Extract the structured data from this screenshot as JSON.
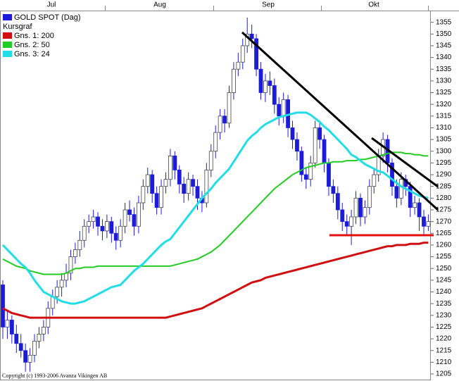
{
  "chart_data": {
    "type": "candlestick",
    "legend_heading": "Kursgraf",
    "footer": "Copyright (c) 1993-2006 Avanza Vikingen AB",
    "months": [
      "Jul",
      "Aug",
      "Sep",
      "Okt"
    ],
    "ylim": [
      1202,
      1360
    ],
    "yticks": [
      1205,
      1210,
      1215,
      1220,
      1225,
      1230,
      1235,
      1240,
      1245,
      1250,
      1255,
      1260,
      1265,
      1270,
      1275,
      1280,
      1285,
      1290,
      1295,
      1300,
      1305,
      1310,
      1315,
      1320,
      1325,
      1330,
      1335,
      1340,
      1345,
      1350,
      1355
    ],
    "series": [
      {
        "name": "GOLD SPOT (Dag)",
        "color": "#1c1cd8",
        "open": [
          1243,
          1225,
          1228,
          1222,
          1218,
          1215,
          1210,
          1213,
          1219,
          1222,
          1225,
          1233,
          1238,
          1242,
          1245,
          1248,
          1255,
          1258,
          1262,
          1268,
          1270,
          1272,
          1268,
          1266,
          1270,
          1265,
          1262,
          1268,
          1275,
          1273,
          1268,
          1278,
          1285,
          1290,
          1282,
          1276,
          1285,
          1288,
          1298,
          1292,
          1286,
          1282,
          1288,
          1285,
          1280,
          1278,
          1292,
          1300,
          1308,
          1315,
          1312,
          1325,
          1335,
          1338,
          1345,
          1350,
          1348,
          1335,
          1325,
          1330,
          1328,
          1320,
          1315,
          1322,
          1310,
          1305,
          1300,
          1290,
          1288,
          1295,
          1310,
          1305,
          1295,
          1285,
          1282,
          1275,
          1270,
          1268,
          1272,
          1280,
          1272,
          1276,
          1285,
          1290,
          1298,
          1305,
          1295,
          1285,
          1280,
          1288,
          1285,
          1276,
          1278,
          1272,
          1268
        ],
        "high": [
          1245,
          1232,
          1230,
          1226,
          1222,
          1218,
          1216,
          1222,
          1225,
          1228,
          1236,
          1241,
          1245,
          1248,
          1252,
          1258,
          1261,
          1266,
          1271,
          1273,
          1275,
          1274,
          1271,
          1273,
          1272,
          1268,
          1271,
          1278,
          1279,
          1276,
          1281,
          1288,
          1293,
          1292,
          1285,
          1288,
          1291,
          1301,
          1300,
          1294,
          1289,
          1291,
          1290,
          1288,
          1283,
          1295,
          1303,
          1311,
          1318,
          1318,
          1328,
          1338,
          1342,
          1348,
          1357,
          1354,
          1350,
          1338,
          1333,
          1334,
          1331,
          1323,
          1325,
          1324,
          1313,
          1308,
          1302,
          1293,
          1298,
          1313,
          1313,
          1307,
          1297,
          1288,
          1285,
          1278,
          1273,
          1275,
          1283,
          1282,
          1279,
          1288,
          1293,
          1301,
          1308,
          1307,
          1297,
          1288,
          1291,
          1290,
          1287,
          1281,
          1280,
          1275,
          1273
        ],
        "low": [
          1220,
          1220,
          1218,
          1214,
          1212,
          1206,
          1206,
          1210,
          1216,
          1219,
          1222,
          1230,
          1235,
          1238,
          1242,
          1245,
          1252,
          1255,
          1259,
          1265,
          1267,
          1264,
          1262,
          1263,
          1261,
          1258,
          1259,
          1265,
          1270,
          1264,
          1265,
          1275,
          1282,
          1278,
          1273,
          1273,
          1282,
          1285,
          1288,
          1282,
          1278,
          1279,
          1281,
          1275,
          1274,
          1276,
          1289,
          1297,
          1305,
          1308,
          1310,
          1322,
          1332,
          1335,
          1342,
          1344,
          1332,
          1322,
          1321,
          1324,
          1316,
          1311,
          1312,
          1306,
          1301,
          1296,
          1287,
          1284,
          1285,
          1293,
          1301,
          1291,
          1281,
          1278,
          1271,
          1266,
          1264,
          1260,
          1269,
          1268,
          1269,
          1273,
          1282,
          1287,
          1295,
          1291,
          1281,
          1276,
          1277,
          1281,
          1272,
          1273,
          1266,
          1264,
          1266
        ],
        "close": [
          1225,
          1228,
          1222,
          1218,
          1215,
          1210,
          1213,
          1219,
          1222,
          1225,
          1233,
          1238,
          1242,
          1245,
          1248,
          1255,
          1258,
          1262,
          1268,
          1270,
          1272,
          1268,
          1266,
          1270,
          1265,
          1262,
          1268,
          1275,
          1273,
          1268,
          1278,
          1285,
          1290,
          1282,
          1276,
          1285,
          1288,
          1298,
          1292,
          1286,
          1282,
          1288,
          1285,
          1280,
          1278,
          1292,
          1300,
          1308,
          1315,
          1312,
          1325,
          1335,
          1338,
          1345,
          1350,
          1348,
          1335,
          1325,
          1330,
          1328,
          1320,
          1315,
          1322,
          1310,
          1305,
          1300,
          1290,
          1288,
          1295,
          1310,
          1305,
          1295,
          1285,
          1282,
          1275,
          1270,
          1268,
          1272,
          1280,
          1272,
          1276,
          1285,
          1290,
          1298,
          1305,
          1295,
          1285,
          1280,
          1288,
          1285,
          1276,
          1278,
          1272,
          1268,
          1270
        ]
      },
      {
        "name": "Gns. 1: 200",
        "color": "#d01010",
        "width": 3,
        "values": [
          1233,
          1232,
          1231,
          1230.5,
          1230,
          1229.5,
          1229,
          1229,
          1229,
          1229,
          1229,
          1229,
          1229,
          1229,
          1229,
          1229,
          1229,
          1229,
          1229,
          1229,
          1229,
          1229,
          1229,
          1229,
          1229,
          1229,
          1229,
          1229,
          1229,
          1229,
          1229,
          1229,
          1229,
          1229,
          1229,
          1229,
          1229,
          1229.5,
          1230,
          1230.5,
          1231,
          1231.5,
          1232,
          1232.5,
          1233,
          1234,
          1235,
          1236,
          1237,
          1238,
          1239,
          1240,
          1241,
          1242,
          1243,
          1244,
          1244.5,
          1245,
          1246,
          1246.5,
          1247,
          1247.5,
          1248,
          1248.5,
          1249,
          1249.5,
          1250,
          1250.5,
          1251,
          1251.5,
          1252,
          1252.5,
          1253,
          1253.5,
          1254,
          1254.5,
          1255,
          1255.5,
          1256,
          1256.5,
          1257,
          1257.5,
          1258,
          1258.5,
          1259,
          1259.5,
          1259.5,
          1260,
          1260,
          1260,
          1260.5,
          1260.5,
          1260.5,
          1261,
          1261
        ]
      },
      {
        "name": "Gns. 2: 50",
        "color": "#22cc22",
        "width": 2,
        "values": [
          1254,
          1253,
          1252,
          1251,
          1250.5,
          1250,
          1249,
          1248.5,
          1248,
          1247.5,
          1247.5,
          1247.5,
          1247.5,
          1247.5,
          1248,
          1249,
          1250,
          1250,
          1250.5,
          1250.5,
          1250.5,
          1251,
          1251,
          1251,
          1251,
          1251,
          1251,
          1251,
          1251,
          1251,
          1251,
          1251,
          1251,
          1251,
          1251,
          1251,
          1251,
          1251,
          1251.5,
          1252,
          1252.5,
          1253,
          1253.5,
          1254,
          1255,
          1256,
          1257,
          1258.5,
          1260,
          1262,
          1264,
          1266,
          1268,
          1270,
          1272,
          1274,
          1276,
          1278,
          1280,
          1282,
          1284,
          1285.5,
          1287,
          1288.5,
          1290,
          1291,
          1292,
          1293,
          1293.5,
          1294,
          1294.5,
          1295,
          1295,
          1295.5,
          1295.5,
          1295.5,
          1296,
          1296,
          1296,
          1296.5,
          1296.5,
          1297,
          1297.5,
          1298,
          1298.5,
          1299,
          1299.5,
          1299.5,
          1299.5,
          1299,
          1299,
          1298.5,
          1298.5,
          1298,
          1298
        ]
      },
      {
        "name": "Gns. 3: 24",
        "color": "#22dde6",
        "width": 3,
        "values": [
          1260,
          1258,
          1256,
          1254,
          1252,
          1250.5,
          1248,
          1245,
          1242.5,
          1240,
          1239,
          1238,
          1237,
          1236,
          1235.5,
          1235,
          1235,
          1235.5,
          1236,
          1237,
          1238,
          1239,
          1240,
          1241,
          1242,
          1242.5,
          1243,
          1245,
          1247,
          1249,
          1250.5,
          1252,
          1254,
          1256,
          1258,
          1260,
          1261.5,
          1262.5,
          1265,
          1267.5,
          1270,
          1272.5,
          1275,
          1277.5,
          1280,
          1282,
          1284,
          1286.5,
          1288.5,
          1290.5,
          1292.5,
          1295.5,
          1298.5,
          1301.5,
          1304.5,
          1306.5,
          1308,
          1310,
          1311.5,
          1312.5,
          1313.5,
          1314.5,
          1315,
          1315.5,
          1316,
          1316.5,
          1316.5,
          1316.5,
          1315.5,
          1314,
          1312.5,
          1310.5,
          1309,
          1307,
          1305,
          1303,
          1301,
          1298.5,
          1297.5,
          1296,
          1294.5,
          1293.5,
          1292.5,
          1291.5,
          1291,
          1289.5,
          1288,
          1286.5,
          1285,
          1284,
          1283,
          1282,
          1281,
          1280.5,
          1280
        ]
      }
    ]
  }
}
